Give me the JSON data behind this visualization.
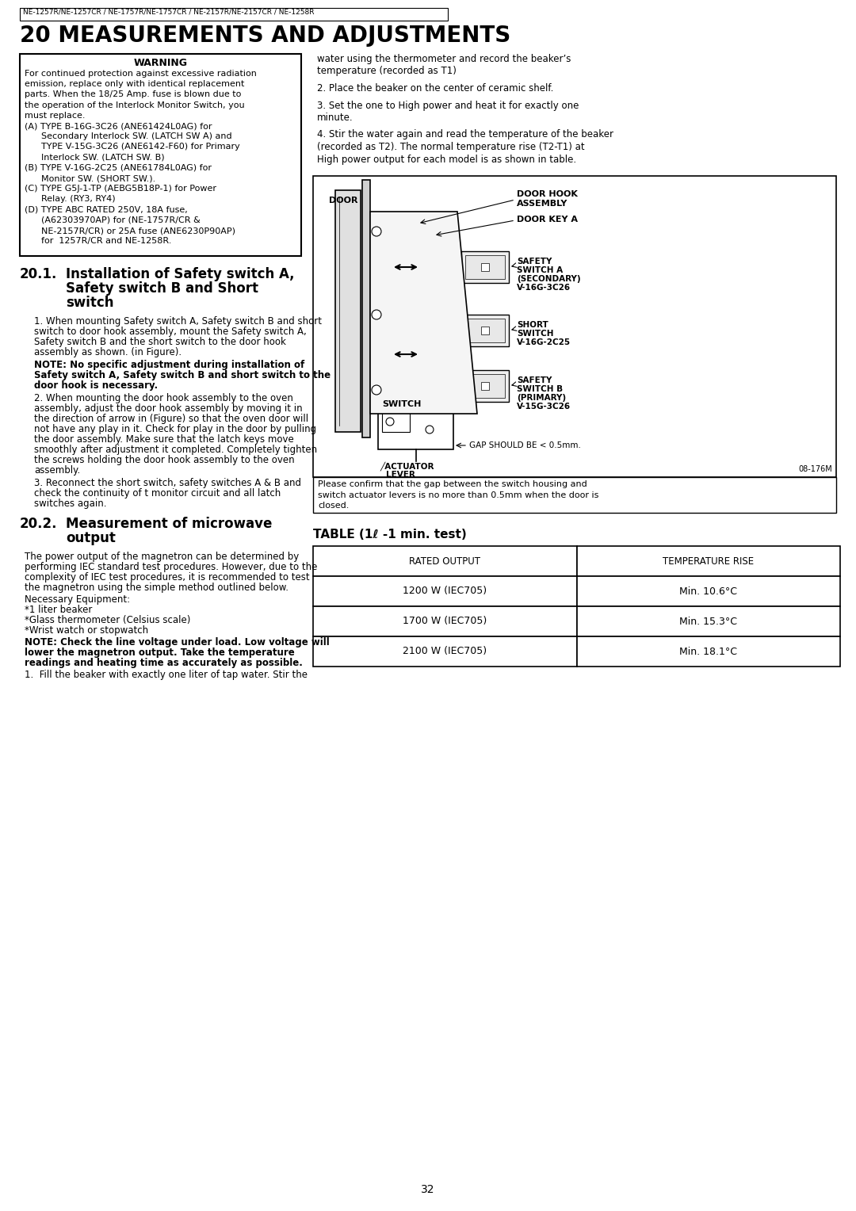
{
  "header_text": "NE-1257R/NE-1257CR / NE-1757R/NE-1757CR / NE-2157R/NE-2157CR / NE-1258R",
  "main_title": "20 MEASUREMENTS AND ADJUSTMENTS",
  "warning_lines": [
    "For continued protection against excessive radiation",
    "emission, replace only with identical replacement",
    "parts. When the 18/25 Amp. fuse is blown due to",
    "the operation of the Interlock Monitor Switch, you",
    "must replace.",
    "(A) TYPE B-16G-3C26 (ANE61424L0AG) for",
    "      Secondary Interlock SW. (LATCH SW A) and",
    "      TYPE V-15G-3C26 (ANE6142-F60) for Primary",
    "      Interlock SW. (LATCH SW. B)",
    "(B) TYPE V-16G-2C25 (ANE61784L0AG) for",
    "      Monitor SW. (SHORT SW.).",
    "(C) TYPE G5J-1-TP (AEBG5B18P-1) for Power",
    "      Relay. (RY3, RY4)",
    "(D) TYPE ABC RATED 250V, 18A fuse,",
    "      (A62303970AP) for (NE-1757R/CR &",
    "      NE-2157R/CR) or 25A fuse (ANE6230P90AP)",
    "      for  1257R/CR and NE-1258R."
  ],
  "rc_lines": [
    "water using the thermometer and record the beaker’s",
    "temperature (recorded as T1)",
    "",
    "2. Place the beaker on the center of ceramic shelf.",
    "",
    "3. Set the one to High power and heat it for exactly one",
    "minute.",
    "",
    "4. Stir the water again and read the temperature of the beaker",
    "(recorded as T2). The normal temperature rise (T2-T1) at",
    "High power output for each model is as shown in table."
  ],
  "table_title": "TABLE (1ℓ -1 min. test)",
  "table_headers": [
    "RATED OUTPUT",
    "TEMPERATURE RISE"
  ],
  "table_rows": [
    [
      "1200 W (IEC705)",
      "Min. 10.6°C"
    ],
    [
      "1700 W (IEC705)",
      "Min. 15.3°C"
    ],
    [
      "2100 W (IEC705)",
      "Min. 18.1°C"
    ]
  ],
  "page_number": "32",
  "bg_color": "#ffffff"
}
